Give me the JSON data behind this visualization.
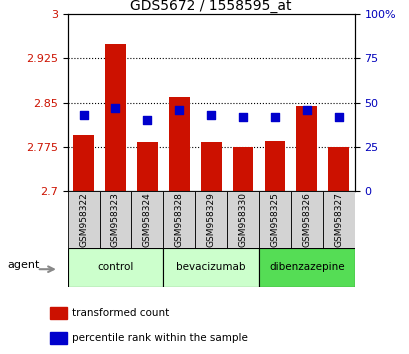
{
  "title": "GDS5672 / 1558595_at",
  "samples": [
    "GSM958322",
    "GSM958323",
    "GSM958324",
    "GSM958328",
    "GSM958329",
    "GSM958330",
    "GSM958325",
    "GSM958326",
    "GSM958327"
  ],
  "transformed_counts": [
    2.795,
    2.95,
    2.783,
    2.86,
    2.783,
    2.775,
    2.785,
    2.845,
    2.775
  ],
  "percentile_ranks": [
    43,
    47,
    40,
    46,
    43,
    42,
    42,
    46,
    42
  ],
  "ylim_left": [
    2.7,
    3.0
  ],
  "ylim_right": [
    0,
    100
  ],
  "yticks_left": [
    2.7,
    2.775,
    2.85,
    2.925,
    3.0
  ],
  "ytick_labels_left": [
    "2.7",
    "2.775",
    "2.85",
    "2.925",
    "3"
  ],
  "yticks_right": [
    0,
    25,
    50,
    75,
    100
  ],
  "ytick_labels_right": [
    "0",
    "25",
    "50",
    "75",
    "100%"
  ],
  "groups": [
    {
      "label": "control",
      "indices": [
        0,
        1,
        2
      ],
      "color": "#ccffcc"
    },
    {
      "label": "bevacizumab",
      "indices": [
        3,
        4,
        5
      ],
      "color": "#ccffcc"
    },
    {
      "label": "dibenzazepine",
      "indices": [
        6,
        7,
        8
      ],
      "color": "#55dd55"
    }
  ],
  "bar_color": "#cc1100",
  "dot_color": "#0000cc",
  "bar_bottom": 2.7,
  "bar_width": 0.65,
  "dot_size": 30,
  "tick_label_color_left": "#cc1100",
  "tick_label_color_right": "#0000bb",
  "agent_label": "agent",
  "legend_items": [
    "transformed count",
    "percentile rank within the sample"
  ],
  "legend_colors": [
    "#cc1100",
    "#0000cc"
  ],
  "sample_box_color": "#d3d3d3",
  "grid_linestyle": ":",
  "grid_linewidth": 0.8,
  "grid_color": "black"
}
